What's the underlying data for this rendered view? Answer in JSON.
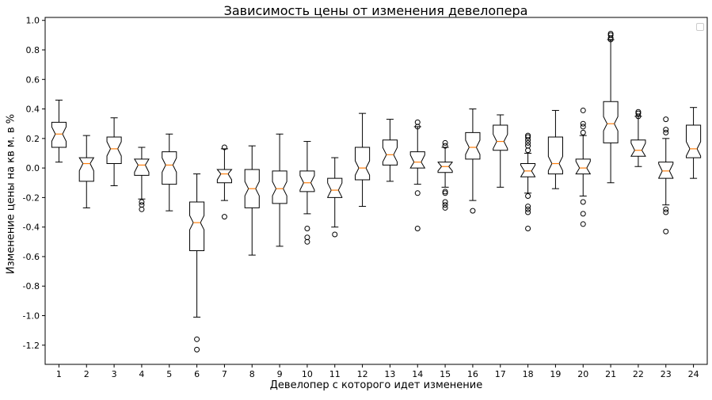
{
  "chart_data": {
    "type": "box",
    "title": "Зависимость цены от изменения девелопера",
    "xlabel": "Девелопер с которого идет изменение",
    "ylabel": "Изменение цены на кв м. в %",
    "ylim": [
      -1.33,
      1.02
    ],
    "yticks": [
      "-1.2",
      "-1.0",
      "-0.8",
      "-0.6",
      "-0.4",
      "-0.2",
      "0.0",
      "0.2",
      "0.4",
      "0.6",
      "0.8",
      "1.0"
    ],
    "yticks_values": [
      -1.2,
      -1.0,
      -0.8,
      -0.6,
      -0.4,
      -0.2,
      0.0,
      0.2,
      0.4,
      0.6,
      0.8,
      1.0
    ],
    "categories": [
      "1",
      "2",
      "3",
      "4",
      "5",
      "6",
      "7",
      "8",
      "9",
      "10",
      "11",
      "12",
      "13",
      "14",
      "15",
      "16",
      "17",
      "18",
      "19",
      "20",
      "21",
      "22",
      "23",
      "24"
    ],
    "notched": true,
    "grid": false,
    "colors": {
      "box": "#000000",
      "median": "#ff7f0e",
      "background": "#ffffff"
    },
    "boxes": [
      {
        "whislo": 0.04,
        "q1": 0.14,
        "med": 0.23,
        "q3": 0.31,
        "whishi": 0.46,
        "fliers": []
      },
      {
        "whislo": -0.27,
        "q1": -0.09,
        "med": 0.03,
        "q3": 0.07,
        "whishi": 0.22,
        "fliers": []
      },
      {
        "whislo": -0.12,
        "q1": 0.03,
        "med": 0.13,
        "q3": 0.21,
        "whishi": 0.34,
        "fliers": []
      },
      {
        "whislo": -0.21,
        "q1": -0.05,
        "med": 0.02,
        "q3": 0.06,
        "whishi": 0.14,
        "fliers": [
          -0.23,
          -0.25,
          -0.28
        ]
      },
      {
        "whislo": -0.29,
        "q1": -0.11,
        "med": 0.02,
        "q3": 0.11,
        "whishi": 0.23,
        "fliers": []
      },
      {
        "whislo": -1.01,
        "q1": -0.56,
        "med": -0.37,
        "q3": -0.23,
        "whishi": -0.04,
        "fliers": [
          -1.16,
          -1.23
        ]
      },
      {
        "whislo": -0.22,
        "q1": -0.1,
        "med": -0.04,
        "q3": -0.01,
        "whishi": 0.13,
        "fliers": [
          0.14,
          -0.33
        ]
      },
      {
        "whislo": -0.59,
        "q1": -0.27,
        "med": -0.14,
        "q3": -0.01,
        "whishi": 0.15,
        "fliers": []
      },
      {
        "whislo": -0.53,
        "q1": -0.24,
        "med": -0.14,
        "q3": -0.02,
        "whishi": 0.23,
        "fliers": []
      },
      {
        "whislo": -0.31,
        "q1": -0.16,
        "med": -0.1,
        "q3": -0.02,
        "whishi": 0.18,
        "fliers": [
          -0.41,
          -0.47,
          -0.5
        ]
      },
      {
        "whislo": -0.4,
        "q1": -0.2,
        "med": -0.15,
        "q3": -0.07,
        "whishi": 0.07,
        "fliers": [
          -0.45
        ]
      },
      {
        "whislo": -0.26,
        "q1": -0.08,
        "med": 0.0,
        "q3": 0.14,
        "whishi": 0.37,
        "fliers": []
      },
      {
        "whislo": -0.09,
        "q1": 0.02,
        "med": 0.09,
        "q3": 0.19,
        "whishi": 0.33,
        "fliers": []
      },
      {
        "whislo": -0.11,
        "q1": 0.0,
        "med": 0.04,
        "q3": 0.11,
        "whishi": 0.28,
        "fliers": [
          0.28,
          0.31,
          -0.17,
          -0.41
        ]
      },
      {
        "whislo": -0.13,
        "q1": -0.03,
        "med": 0.01,
        "q3": 0.04,
        "whishi": 0.14,
        "fliers": [
          0.15,
          0.17,
          -0.16,
          -0.17,
          -0.23,
          -0.25,
          -0.27
        ]
      },
      {
        "whislo": -0.22,
        "q1": 0.06,
        "med": 0.14,
        "q3": 0.24,
        "whishi": 0.4,
        "fliers": [
          -0.29
        ]
      },
      {
        "whislo": -0.13,
        "q1": 0.12,
        "med": 0.18,
        "q3": 0.29,
        "whishi": 0.36,
        "fliers": []
      },
      {
        "whislo": -0.17,
        "q1": -0.06,
        "med": -0.02,
        "q3": 0.03,
        "whishi": 0.1,
        "fliers": [
          0.12,
          0.15,
          0.17,
          0.19,
          0.21,
          0.22,
          -0.19,
          -0.26,
          -0.28,
          -0.3,
          -0.41
        ]
      },
      {
        "whislo": -0.14,
        "q1": -0.04,
        "med": 0.03,
        "q3": 0.21,
        "whishi": 0.39,
        "fliers": []
      },
      {
        "whislo": -0.19,
        "q1": -0.04,
        "med": 0.0,
        "q3": 0.06,
        "whishi": 0.22,
        "fliers": [
          0.24,
          0.28,
          0.3,
          0.39,
          -0.23,
          -0.31,
          -0.38
        ]
      },
      {
        "whislo": -0.1,
        "q1": 0.17,
        "med": 0.3,
        "q3": 0.45,
        "whishi": 0.87,
        "fliers": [
          0.87,
          0.88,
          0.9,
          0.91
        ]
      },
      {
        "whislo": 0.01,
        "q1": 0.08,
        "med": 0.12,
        "q3": 0.19,
        "whishi": 0.35,
        "fliers": [
          0.35,
          0.37,
          0.38
        ]
      },
      {
        "whislo": -0.25,
        "q1": -0.07,
        "med": -0.02,
        "q3": 0.04,
        "whishi": 0.2,
        "fliers": [
          0.24,
          0.26,
          0.33,
          -0.28,
          -0.3,
          -0.43
        ]
      },
      {
        "whislo": -0.07,
        "q1": 0.07,
        "med": 0.13,
        "q3": 0.29,
        "whishi": 0.41,
        "fliers": []
      }
    ]
  }
}
